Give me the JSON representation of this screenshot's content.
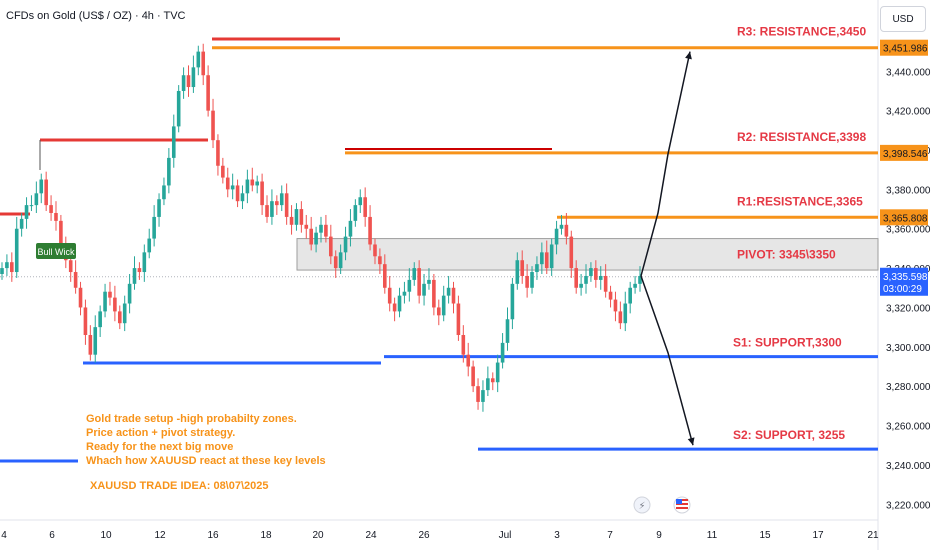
{
  "header": {
    "title": "CFDs on Gold (US$ / OZ) · 4h · TVC",
    "currency_button": "USD"
  },
  "colors": {
    "up": "#26a69a",
    "down": "#ef5350",
    "resistance": "#f7931a",
    "pivot": "#e53945",
    "support": "#2962ff",
    "red_line": "#e53935"
  },
  "icons": [
    "flash-icon",
    "us-flag-icon"
  ],
  "notes": {
    "lines": [
      "Gold trade setup -high probabilty zones.",
      "Price action + pivot strategy.",
      "Ready for the next big move",
      "Whach how XAUUSD react at these key levels"
    ],
    "idea": "XAUUSD TRADE IDEA: 08\\07\\2025"
  },
  "badge": {
    "text": "Bull Wick"
  },
  "price_badges": [
    {
      "label": "3,451.986",
      "value": 3451.986
    },
    {
      "label": "3,398.546",
      "value": 3398.546
    },
    {
      "label": "3,365.808",
      "value": 3365.808
    }
  ],
  "current": {
    "price": "3,335.598",
    "countdown": "03:00:29",
    "value": 3335.598
  },
  "chart_data": {
    "type": "candlestick",
    "title": "CFDs on Gold (US$ / OZ) · 4h · TVC",
    "ylim": [
      3212,
      3462
    ],
    "y_ticks": [
      3220,
      3240,
      3260,
      3280,
      3300,
      3320,
      3340,
      3360,
      3380,
      3400,
      3420,
      3440
    ],
    "x_ticks": [
      "4",
      "6",
      "10",
      "12",
      "16",
      "18",
      "20",
      "24",
      "26",
      "Jul",
      "3",
      "7",
      "9",
      "11",
      "15",
      "17",
      "21"
    ],
    "levels": [
      {
        "label": "R3: RESISTANCE,3450",
        "value": 3451.986
      },
      {
        "label": "R2: RESISTANCE,3398",
        "value": 3398.546
      },
      {
        "label": "R1:RESISTANCE,3365",
        "value": 3365.808
      },
      {
        "label": "PIVOT: 3345\\3350",
        "from": 3339,
        "to": 3355
      },
      {
        "label": "S1: SUPPORT,3300",
        "value": 3295
      },
      {
        "label": "S2: SUPPORT, 3255",
        "value": 3248
      }
    ],
    "close_path": [
      3340,
      3343,
      3338,
      3360,
      3365,
      3372,
      3372,
      3378,
      3385,
      3372,
      3368,
      3364,
      3352,
      3344,
      3338,
      3330,
      3320,
      3306,
      3296,
      3310,
      3318,
      3328,
      3325,
      3318,
      3312,
      3322,
      3332,
      3340,
      3338,
      3348,
      3355,
      3366,
      3375,
      3382,
      3396,
      3412,
      3430,
      3438,
      3432,
      3442,
      3450,
      3438,
      3420,
      3405,
      3392,
      3386,
      3380,
      3382,
      3374,
      3378,
      3385,
      3382,
      3384,
      3372,
      3366,
      3374,
      3372,
      3378,
      3366,
      3362,
      3370,
      3362,
      3360,
      3352,
      3358,
      3362,
      3356,
      3346,
      3340,
      3348,
      3356,
      3364,
      3372,
      3376,
      3366,
      3352,
      3346,
      3342,
      3330,
      3322,
      3318,
      3326,
      3328,
      3334,
      3340,
      3326,
      3332,
      3334,
      3320,
      3316,
      3326,
      3330,
      3322,
      3306,
      3296,
      3290,
      3280,
      3272,
      3278,
      3284,
      3282,
      3292,
      3302,
      3314,
      3332,
      3344,
      3336,
      3330,
      3338,
      3342,
      3348,
      3340,
      3352,
      3360,
      3362,
      3356,
      3340,
      3330,
      3332,
      3336,
      3340,
      3334,
      3336,
      3328,
      3324,
      3318,
      3312,
      3322,
      3330,
      3332,
      3336
    ]
  }
}
